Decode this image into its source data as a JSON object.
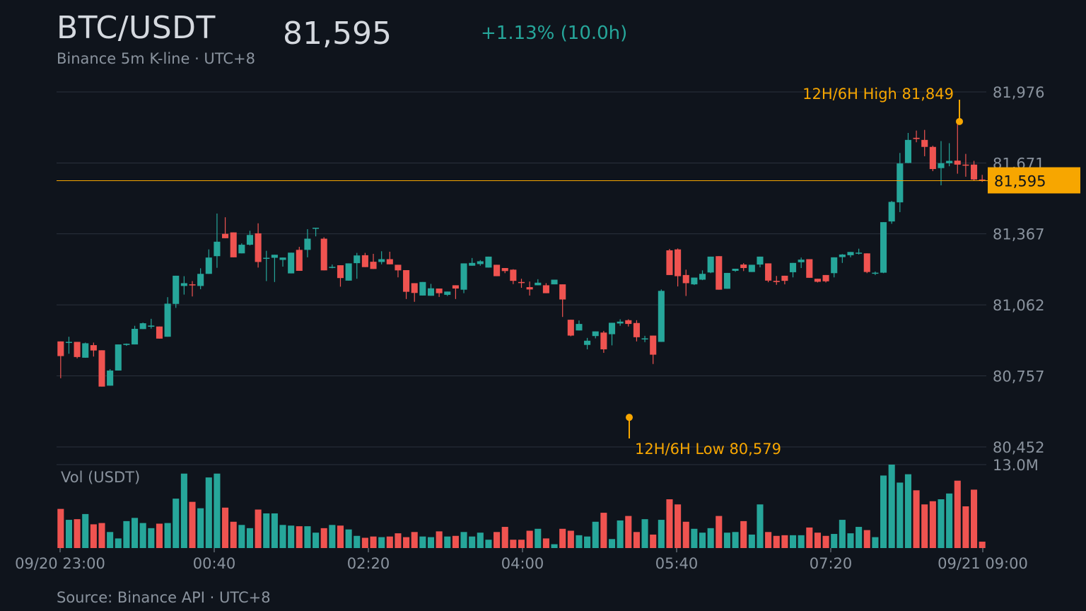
{
  "header": {
    "title": "BTC/USDT",
    "price": "81,595",
    "change": "+1.13% (10.0h)",
    "subtitle": "Binance 5m K-line · UTC+8"
  },
  "footer": {
    "source": "Source: Binance API · UTC+8"
  },
  "colors": {
    "up": "#26a69a",
    "down": "#ef5350",
    "accent": "#f7a600",
    "grid": "#2a313c",
    "background": "#0f141c"
  },
  "chart_data": {
    "type": "candlestick",
    "interval": "5m",
    "x_ticks": [
      "09/20 23:00",
      "00:40",
      "02:20",
      "04:00",
      "05:40",
      "07:20",
      "09/21 09:00"
    ],
    "y_ticks": [
      80452,
      80757,
      81062,
      81367,
      81671,
      81976
    ],
    "y_tick_labels": [
      "80,452",
      "80,757",
      "81,062",
      "81,367",
      "81,671",
      "81,976"
    ],
    "ylim": [
      80452,
      81976
    ],
    "volume_label": "Vol (USDT)",
    "volume_max_label": "13.0M",
    "volume_max": 13.0,
    "last_price": 81595,
    "last_price_label": "81,595",
    "high": {
      "label": "12H/6H High 81,849",
      "value": 81849,
      "index": 97
    },
    "low": {
      "label": "12H/6H Low 80,579",
      "value": 80579,
      "index": 59
    },
    "candles": [
      [
        80905,
        80905,
        80747,
        80842,
        6.1
      ],
      [
        80903,
        80925,
        80852,
        80903,
        4.4
      ],
      [
        80903,
        80903,
        80832,
        80838,
        4.5
      ],
      [
        80835,
        80900,
        80835,
        80897,
        5.3
      ],
      [
        80889,
        80900,
        80840,
        80866,
        3.7
      ],
      [
        80867,
        80867,
        80716,
        80711,
        3.9
      ],
      [
        80715,
        80786,
        80715,
        80780,
        2.5
      ],
      [
        80780,
        80880,
        80786,
        80892,
        1.5
      ],
      [
        80890,
        80896,
        80886,
        80895,
        4.2
      ],
      [
        80892,
        80972,
        80892,
        80959,
        4.7
      ],
      [
        80958,
        80986,
        80958,
        80983,
        3.9
      ],
      [
        80968,
        81002,
        80960,
        80973,
        3.1
      ],
      [
        80969,
        80969,
        80917,
        80917,
        3.8
      ],
      [
        80925,
        81095,
        80928,
        81067,
        3.9
      ],
      [
        81066,
        81165,
        81049,
        81187,
        7.7
      ],
      [
        81143,
        81185,
        81106,
        81155,
        11.6
      ],
      [
        81150,
        81164,
        81098,
        81146,
        7.2
      ],
      [
        81143,
        81219,
        81129,
        81195,
        6.2
      ],
      [
        81195,
        81300,
        81221,
        81265,
        11.0
      ],
      [
        81271,
        81454,
        81221,
        81333,
        11.6
      ],
      [
        81367,
        81438,
        81352,
        81348,
        6.3
      ],
      [
        81373,
        81340,
        81290,
        81266,
        4.1
      ],
      [
        81283,
        81326,
        81290,
        81320,
        3.6
      ],
      [
        81320,
        81380,
        81317,
        81362,
        3.1
      ],
      [
        81369,
        81412,
        81222,
        81246,
        6.0
      ],
      [
        81264,
        81294,
        81164,
        81264,
        5.4
      ],
      [
        81264,
        81271,
        81160,
        81277,
        5.4
      ],
      [
        81255,
        81263,
        81226,
        81265,
        3.6
      ],
      [
        81197,
        81282,
        81232,
        81286,
        3.5
      ],
      [
        81298,
        81311,
        81251,
        81208,
        3.4
      ],
      [
        81298,
        81387,
        81266,
        81346,
        3.4
      ],
      [
        81391,
        81385,
        81356,
        81393,
        2.4
      ],
      [
        81346,
        81352,
        81300,
        81210,
        3.1
      ],
      [
        81223,
        81235,
        81219,
        81225,
        3.6
      ],
      [
        81232,
        81210,
        81140,
        81177,
        3.5
      ],
      [
        81166,
        81239,
        81170,
        81240,
        2.9
      ],
      [
        81241,
        81285,
        81174,
        81274,
        1.9
      ],
      [
        81275,
        81285,
        81236,
        81224,
        1.6
      ],
      [
        81247,
        81281,
        81249,
        81216,
        1.8
      ],
      [
        81246,
        81292,
        81236,
        81258,
        1.7
      ],
      [
        81258,
        81290,
        81246,
        81236,
        1.8
      ],
      [
        81234,
        81226,
        81180,
        81210,
        2.3
      ],
      [
        81211,
        81157,
        81087,
        81118,
        1.7
      ],
      [
        81155,
        81148,
        81075,
        81113,
        2.5
      ],
      [
        81102,
        81122,
        81153,
        81160,
        1.8
      ],
      [
        81101,
        81152,
        81121,
        81133,
        1.7
      ],
      [
        81132,
        81102,
        81096,
        81112,
        2.6
      ],
      [
        81105,
        81100,
        81103,
        81119,
        1.8
      ],
      [
        81146,
        81130,
        81087,
        81132,
        1.9
      ],
      [
        81127,
        81220,
        81112,
        81240,
        2.5
      ],
      [
        81230,
        81263,
        81258,
        81242,
        1.8
      ],
      [
        81237,
        81254,
        81230,
        81249,
        2.4
      ],
      [
        81222,
        81263,
        81225,
        81269,
        1.3
      ],
      [
        81234,
        81223,
        81199,
        81185,
        2.5
      ],
      [
        81220,
        81207,
        81198,
        81207,
        3.3
      ],
      [
        81213,
        81215,
        81151,
        81165,
        1.3
      ],
      [
        81160,
        81174,
        81135,
        81156,
        1.3
      ],
      [
        81138,
        81162,
        81102,
        81128,
        2.7
      ],
      [
        81146,
        81172,
        81158,
        81157,
        3.0
      ],
      [
        81146,
        81155,
        81117,
        81112,
        1.5
      ]
    ],
    "volumes_tail": []
  }
}
